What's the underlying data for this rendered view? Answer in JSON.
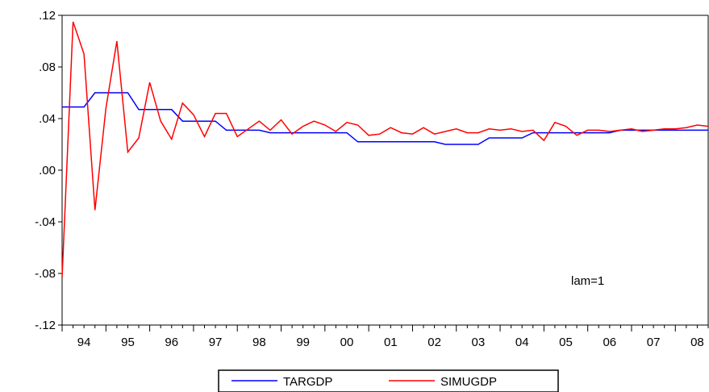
{
  "chart_data": {
    "type": "line",
    "title": "",
    "xlabel": "",
    "ylabel": "",
    "ylim": [
      -0.12,
      0.12
    ],
    "xlim": [
      1994.0,
      2008.75
    ],
    "yticks": [
      {
        "value": -0.12,
        "label": "-.12"
      },
      {
        "value": -0.08,
        "label": "-.08"
      },
      {
        "value": -0.04,
        "label": "-.04"
      },
      {
        "value": 0.0,
        "label": ".00"
      },
      {
        "value": 0.04,
        "label": ".04"
      },
      {
        "value": 0.08,
        "label": ".08"
      },
      {
        "value": 0.12,
        "label": ".12"
      }
    ],
    "xticks": [
      "94",
      "95",
      "96",
      "97",
      "98",
      "99",
      "00",
      "01",
      "02",
      "03",
      "04",
      "05",
      "06",
      "07",
      "08"
    ],
    "grid": false,
    "legend_position": "bottom-center",
    "annotation": "lam=1",
    "x_start": "1994Q1",
    "frequency": "quarterly",
    "series": [
      {
        "name": "TARGDP",
        "color": "#0000ff",
        "values": [
          0.049,
          0.049,
          0.049,
          0.06,
          0.06,
          0.06,
          0.06,
          0.047,
          0.047,
          0.047,
          0.047,
          0.038,
          0.038,
          0.038,
          0.038,
          0.031,
          0.031,
          0.031,
          0.031,
          0.029,
          0.029,
          0.029,
          0.029,
          0.029,
          0.029,
          0.029,
          0.029,
          0.022,
          0.022,
          0.022,
          0.022,
          0.022,
          0.022,
          0.022,
          0.022,
          0.02,
          0.02,
          0.02,
          0.02,
          0.025,
          0.025,
          0.025,
          0.025,
          0.029,
          0.029,
          0.029,
          0.029,
          0.029,
          0.029,
          0.029,
          0.029,
          0.031,
          0.031,
          0.031,
          0.031,
          0.031,
          0.031,
          0.031,
          0.031,
          0.031
        ]
      },
      {
        "name": "SIMUGDP",
        "color": "#ff0000",
        "values": [
          -0.083,
          0.115,
          0.09,
          -0.031,
          0.048,
          0.1,
          0.014,
          0.025,
          0.068,
          0.038,
          0.024,
          0.052,
          0.043,
          0.026,
          0.044,
          0.044,
          0.026,
          0.032,
          0.038,
          0.031,
          0.039,
          0.028,
          0.034,
          0.038,
          0.035,
          0.03,
          0.037,
          0.035,
          0.027,
          0.028,
          0.033,
          0.029,
          0.028,
          0.033,
          0.028,
          0.03,
          0.032,
          0.029,
          0.029,
          0.032,
          0.031,
          0.032,
          0.03,
          0.031,
          0.023,
          0.037,
          0.034,
          0.027,
          0.031,
          0.031,
          0.03,
          0.031,
          0.032,
          0.03,
          0.031,
          0.032,
          0.032,
          0.033,
          0.035,
          0.034
        ]
      }
    ]
  }
}
